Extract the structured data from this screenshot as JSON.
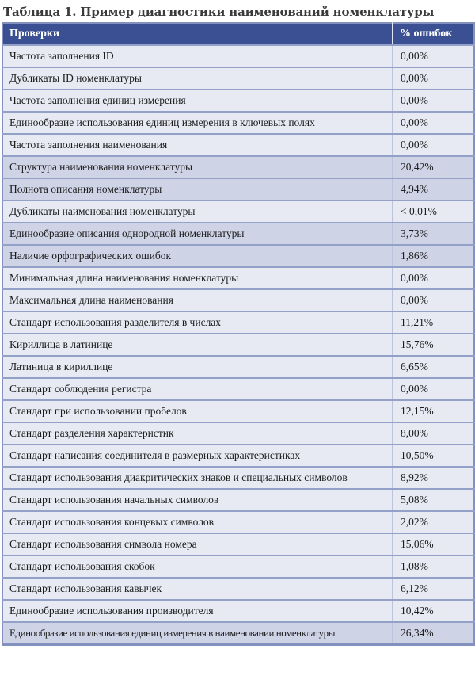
{
  "title": "Таблица 1. Пример диагностики наименований номенклатуры",
  "colors": {
    "header_bg": "#3a5092",
    "row_light": "#e7e9f3",
    "row_dark": "#ced3e6",
    "border": "#93a0c7",
    "header_text": "#ffffff",
    "body_text": "#1c1c1c",
    "title_text": "#3b3b3b"
  },
  "table": {
    "columns": [
      "Проверки",
      "% ошибок"
    ],
    "rows": [
      {
        "check": "Частота заполнения ID",
        "value": "0,00%",
        "highlight": false
      },
      {
        "check": "Дубликаты ID номенклатуры",
        "value": "0,00%",
        "highlight": false
      },
      {
        "check": "Частота заполнения единиц измерения",
        "value": "0,00%",
        "highlight": false
      },
      {
        "check": "Единообразие использования единиц измерения в ключевых полях",
        "value": "0,00%",
        "highlight": false
      },
      {
        "check": "Частота заполнения наименования",
        "value": "0,00%",
        "highlight": false
      },
      {
        "check": "Структура наименования номенклатуры",
        "value": "20,42%",
        "highlight": true
      },
      {
        "check": "Полнота описания номенклатуры",
        "value": "4,94%",
        "highlight": true
      },
      {
        "check": "Дубликаты наименования номенклатуры",
        "value": "< 0,01%",
        "highlight": false
      },
      {
        "check": "Единообразие описания однородной номенклатуры",
        "value": "3,73%",
        "highlight": true
      },
      {
        "check": "Наличие орфографических ошибок",
        "value": "1,86%",
        "highlight": true
      },
      {
        "check": "Минимальная длина наименования номенклатуры",
        "value": "0,00%",
        "highlight": false
      },
      {
        "check": "Максимальная длина наименования",
        "value": "0,00%",
        "highlight": false
      },
      {
        "check": "Стандарт использования разделителя в числах",
        "value": "11,21%",
        "highlight": false
      },
      {
        "check": "Кириллица в латинице",
        "value": "15,76%",
        "highlight": false
      },
      {
        "check": "Латиница в кириллице",
        "value": "6,65%",
        "highlight": false
      },
      {
        "check": "Стандарт соблюдения регистра",
        "value": "0,00%",
        "highlight": false
      },
      {
        "check": "Стандарт при использовании пробелов",
        "value": "12,15%",
        "highlight": false
      },
      {
        "check": "Стандарт разделения характеристик",
        "value": "8,00%",
        "highlight": false
      },
      {
        "check": "Стандарт написания соединителя в размерных характеристиках",
        "value": "10,50%",
        "highlight": false
      },
      {
        "check": "Стандарт использования диакритических знаков и специальных символов",
        "value": "8,92%",
        "highlight": false
      },
      {
        "check": "Стандарт использования начальных символов",
        "value": "5,08%",
        "highlight": false
      },
      {
        "check": "Стандарт использования концевых символов",
        "value": "2,02%",
        "highlight": false
      },
      {
        "check": "Стандарт использования символа номера",
        "value": "15,06%",
        "highlight": false
      },
      {
        "check": "Стандарт использования скобок",
        "value": "1,08%",
        "highlight": false
      },
      {
        "check": "Стандарт использования кавычек",
        "value": "6,12%",
        "highlight": false
      },
      {
        "check": "Единообразие использования производителя",
        "value": "10,42%",
        "highlight": false
      },
      {
        "check": "Единообразие использования единиц измерения в наименовании номенклатуры",
        "value": "26,34%",
        "highlight": true
      }
    ]
  }
}
